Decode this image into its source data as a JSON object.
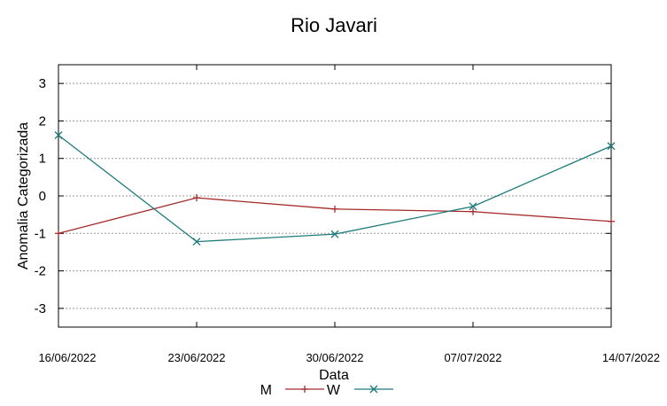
{
  "chart_data": {
    "type": "line",
    "title": "Rio Javari",
    "xlabel": "Data",
    "ylabel": "Anomalia Categorizada",
    "categories": [
      "16/06/2022",
      "23/06/2022",
      "30/06/2022",
      "07/07/2022",
      "14/07/2022"
    ],
    "yticks": [
      "3",
      "2",
      "1",
      "0",
      "-1",
      "-2",
      "-3"
    ],
    "ylim": [
      -3.5,
      3.5
    ],
    "grid": true,
    "legend_position": "bottom-center",
    "series": [
      {
        "name": "M",
        "marker": "+",
        "color": "#a52a2a",
        "values": [
          -1.0,
          -0.05,
          -0.35,
          -0.42,
          -0.68
        ]
      },
      {
        "name": "W",
        "marker": "x",
        "color": "#1e7b7b",
        "values": [
          1.62,
          -1.22,
          -1.02,
          -0.28,
          1.33
        ]
      }
    ]
  }
}
